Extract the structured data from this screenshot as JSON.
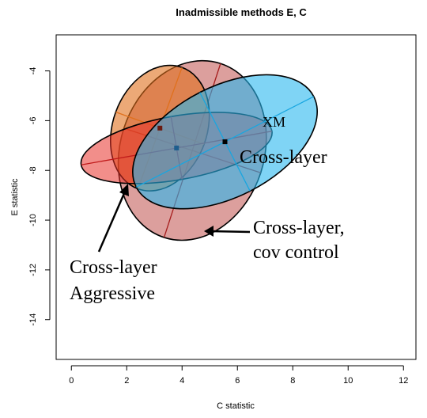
{
  "chart_data": {
    "type": "scatter",
    "title": "Inadmissible methods E, C",
    "xlabel": "C statistic",
    "ylabel": "E statistic",
    "xlim": [
      -0.55,
      12.45
    ],
    "ylim": [
      -15.6,
      -2.55
    ],
    "x_ticks": [
      0,
      2,
      4,
      6,
      8,
      10,
      12
    ],
    "y_ticks": [
      -4,
      -6,
      -8,
      -10,
      -12,
      -14
    ],
    "grid": false,
    "ellipses": [
      {
        "id": "cross-layer-cov-control",
        "center": [
          4.37,
          -7.2
        ],
        "semi_axes": [
          3.3,
          2.6
        ],
        "rotation_deg": 72,
        "fill": "#c0504d",
        "fill_opacity": 0.55,
        "line_color": "#a51c1c"
      },
      {
        "id": "cross-layer-aggressive",
        "center": [
          3.2,
          -6.3
        ],
        "semi_axes": [
          2.33,
          1.7
        ],
        "rotation_deg": 70,
        "fill": "#e0701c",
        "fill_opacity": 0.6,
        "line_color": "#e0701c"
      },
      {
        "id": "cross-layer-red",
        "center": [
          3.8,
          -7.1
        ],
        "semi_axes": [
          3.5,
          1.15
        ],
        "rotation_deg": 10,
        "fill": "#e8322a",
        "fill_opacity": 0.55,
        "line_color": "#c01a1a"
      },
      {
        "id": "cross-layer",
        "center": [
          5.55,
          -6.85
        ],
        "semi_axes": [
          3.6,
          2.0
        ],
        "rotation_deg": 27,
        "fill": "#29b8ef",
        "fill_opacity": 0.6,
        "line_color": "#19a6e0"
      }
    ],
    "points": [
      {
        "x": 3.2,
        "y": -6.3,
        "color": "#6b1a10"
      },
      {
        "x": 3.8,
        "y": -7.1,
        "color": "#1e5e8e"
      },
      {
        "x": 5.55,
        "y": -6.85,
        "color": "#000000"
      }
    ],
    "annotations": {
      "xm": "XM",
      "cross_layer": "Cross-layer",
      "cov_control_line1": "Cross-layer,",
      "cov_control_line2": "cov control",
      "aggressive_line1": "Cross-layer",
      "aggressive_line2": "Aggressive"
    }
  }
}
